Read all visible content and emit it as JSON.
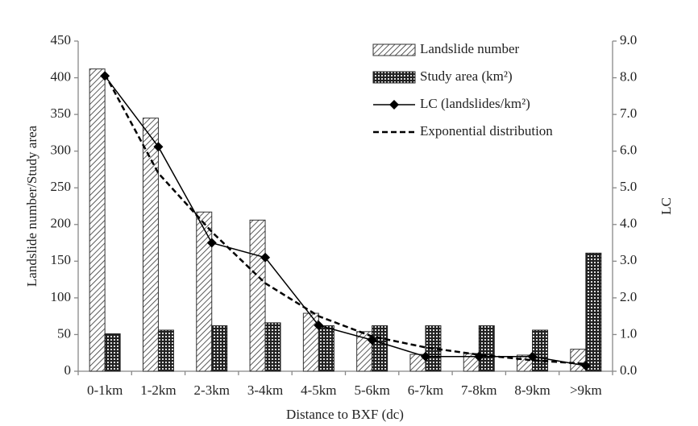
{
  "chart_data": {
    "type": "bar-line",
    "x_label": "Distance to BXF (dc)",
    "y_label": "Landslide number/Study area",
    "y2_label": "LC",
    "categories": [
      "0-1km",
      "1-2km",
      "2-3km",
      "3-4km",
      "4-5km",
      "5-6km",
      "6-7km",
      "7-8km",
      "8-9km",
      ">9km"
    ],
    "series": [
      {
        "name": "Landslide number",
        "type": "bar",
        "color": "#333333",
        "values": [
          412,
          345,
          217,
          206,
          79,
          54,
          23,
          24,
          22,
          30
        ]
      },
      {
        "name": "Study area (km²)",
        "type": "bar",
        "color": "#222222",
        "values": [
          51,
          56,
          62,
          66,
          62,
          62,
          62,
          62,
          56,
          161
        ]
      },
      {
        "name": "LC (landslides/km²)",
        "type": "line",
        "axis": "y2",
        "color": "#000000",
        "marker": "diamond",
        "values": [
          8.05,
          6.12,
          3.5,
          3.1,
          1.25,
          0.85,
          0.4,
          0.4,
          0.4,
          0.15
        ]
      },
      {
        "name": "Exponential distribution",
        "type": "line",
        "axis": "y2",
        "color": "#000000",
        "dashed": true,
        "values": [
          8.1,
          5.4,
          3.8,
          2.4,
          1.5,
          0.95,
          0.65,
          0.45,
          0.3,
          0.2
        ]
      }
    ],
    "ylim": [
      0,
      450
    ],
    "yticks": [
      0,
      50,
      100,
      150,
      200,
      250,
      300,
      350,
      400,
      450
    ],
    "y2lim": [
      0,
      9
    ],
    "y2ticks": [
      {
        "value": 0,
        "label": "0.0"
      },
      {
        "value": 1,
        "label": "1.0"
      },
      {
        "value": 2,
        "label": "2.0"
      },
      {
        "value": 3,
        "label": "3.0"
      },
      {
        "value": 4,
        "label": "4.0"
      },
      {
        "value": 5,
        "label": "5.0"
      },
      {
        "value": 6,
        "label": "6.0"
      },
      {
        "value": 7,
        "label": "7.0"
      },
      {
        "value": 8,
        "label": "8.0"
      },
      {
        "value": 9,
        "label": "9.0"
      }
    ],
    "grid": false
  }
}
